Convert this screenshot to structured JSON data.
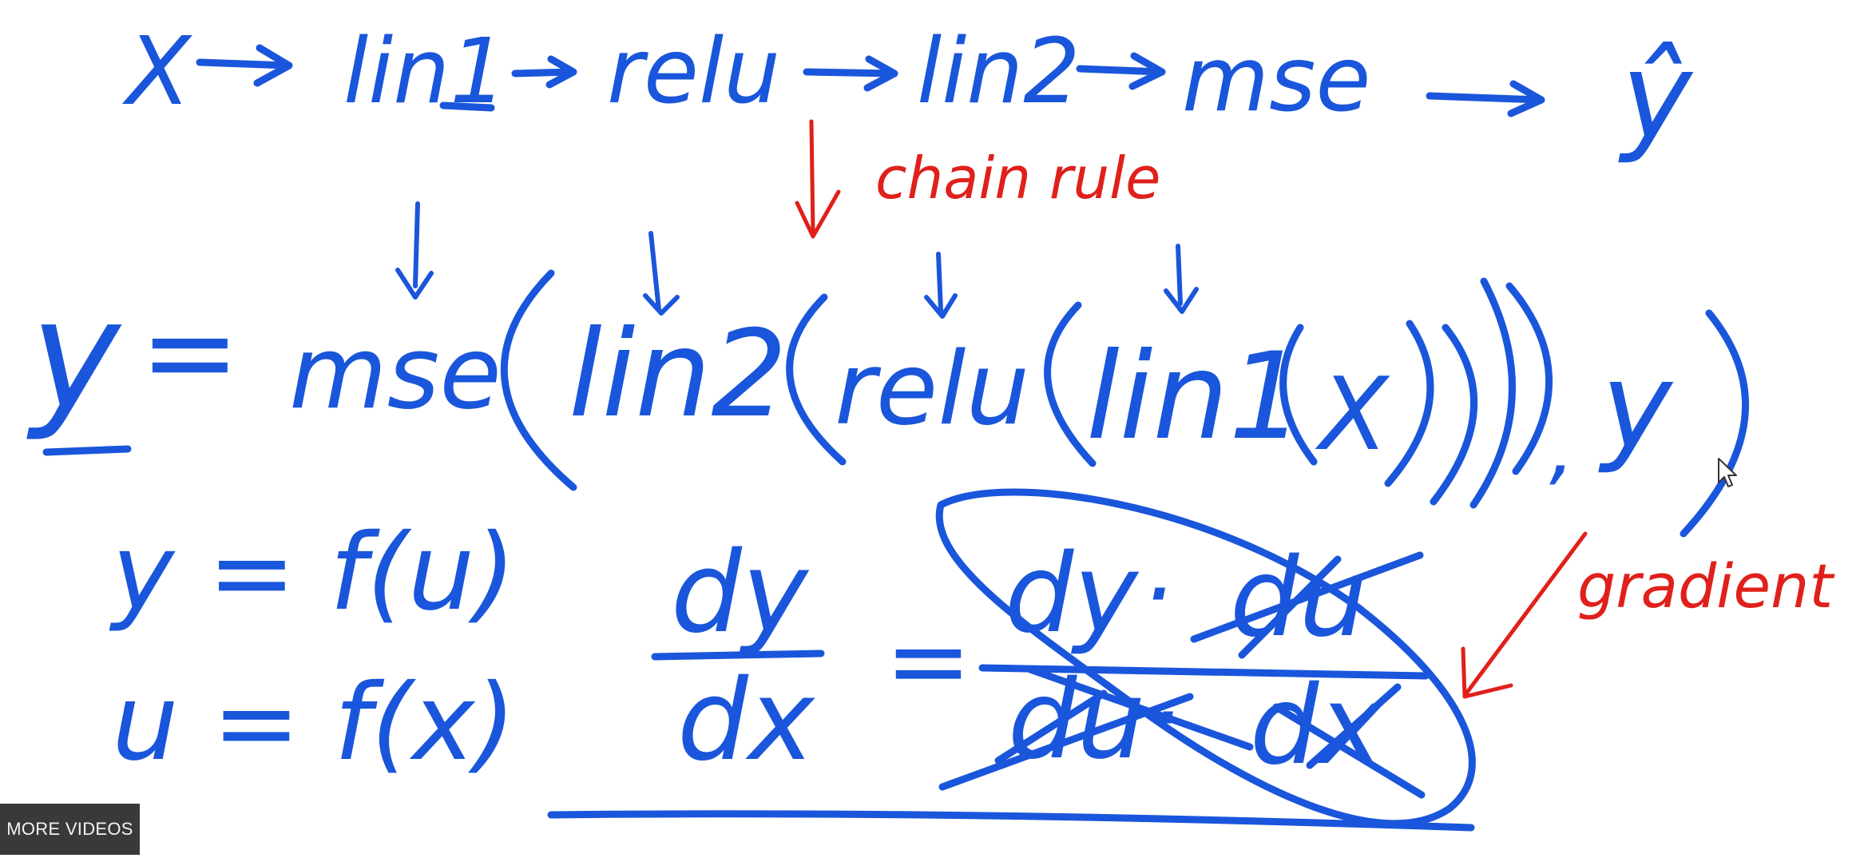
{
  "pipeline": {
    "x": "X",
    "lin1": "lin1",
    "relu": "relu",
    "lin2": "lin2",
    "mse": "mse",
    "y_hat": "ŷ"
  },
  "annotations": {
    "chain_rule": "chain rule",
    "gradient": "gradient"
  },
  "equation": {
    "lhs": "y",
    "equals": "=",
    "mse": "mse",
    "lin2": "lin2",
    "relu": "relu",
    "lin1": "lin1",
    "x": "X",
    "y": "y"
  },
  "substitution": {
    "line1": "y = f(u)",
    "line2": "u = f(x)"
  },
  "derivative": {
    "lhs_num": "dy",
    "lhs_den": "dx",
    "equals": "=",
    "rhs_num_a": "dy",
    "rhs_num_dot": "·",
    "rhs_num_b": "du",
    "rhs_den_a": "du",
    "rhs_den_dot": "·",
    "rhs_den_b": "dx"
  },
  "overlay": {
    "more_videos": "MORE VIDEOS"
  },
  "colors": {
    "ink_blue": "#1a56db",
    "ink_red": "#e0201b"
  }
}
